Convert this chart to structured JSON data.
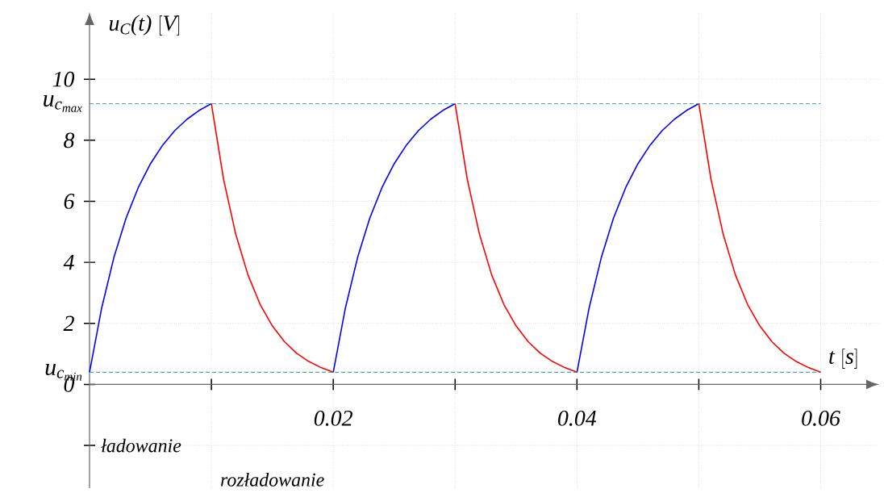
{
  "chart_data": {
    "type": "line",
    "xlabel": "\\textit{t}\\ [\\textit{s}]",
    "ylabel": "\\textit{u}_{\\textit{C}}\\textit{(t)}\\ [\\textit{V}]",
    "xlim": [
      0,
      0.0648
    ],
    "ylim": [
      -3.4,
      12.2
    ],
    "xticks": [
      {
        "value": 0.01,
        "label": null
      },
      {
        "value": 0.02,
        "label": "0.02"
      },
      {
        "value": 0.03,
        "label": null
      },
      {
        "value": 0.04,
        "label": "0.04"
      },
      {
        "value": 0.05,
        "label": null
      },
      {
        "value": 0.06,
        "label": "0.06"
      }
    ],
    "yticks": [
      {
        "value": -2,
        "label": null
      },
      0,
      2,
      4,
      6,
      8,
      10
    ],
    "grid": true,
    "series": [
      {
        "color": "#0000ff",
        "x": [
          0,
          0.001,
          0.002,
          0.003,
          0.004,
          0.005,
          0.006,
          0.007,
          0.008,
          0.009,
          0.01,
          0.015,
          0.02,
          0.021,
          0.022,
          0.023,
          0.024,
          0.025,
          0.026,
          0.027,
          0.028,
          0.029,
          0.03,
          0.035,
          0.04,
          0.041,
          0.042,
          0.043,
          0.044,
          0.045,
          0.046,
          0.047,
          0.048,
          0.049,
          0.05
        ],
        "values": [
          0.4,
          2.51,
          4.16,
          5.45,
          6.45,
          7.23,
          7.84,
          8.32,
          8.69,
          8.98,
          9.2,
          null,
          0.4,
          2.51,
          4.16,
          5.45,
          6.45,
          7.23,
          7.84,
          8.32,
          8.69,
          8.98,
          9.2,
          null,
          0.4,
          2.51,
          4.16,
          5.45,
          6.45,
          7.23,
          7.84,
          8.32,
          8.69,
          8.98,
          9.2
        ]
      },
      {
        "color": "#ff0000",
        "x": [
          0.01,
          0.011,
          0.012,
          0.013,
          0.014,
          0.015,
          0.016,
          0.017,
          0.018,
          0.019,
          0.02,
          0.025,
          0.03,
          0.031,
          0.032,
          0.033,
          0.034,
          0.035,
          0.036,
          0.037,
          0.038,
          0.039,
          0.04,
          0.045,
          0.05,
          0.051,
          0.052,
          0.053,
          0.054,
          0.055,
          0.056,
          0.057,
          0.058,
          0.059,
          0.06
        ],
        "values": [
          9.2,
          6.72,
          4.92,
          3.59,
          2.62,
          1.92,
          1.4,
          1.02,
          0.75,
          0.55,
          0.4,
          null,
          9.2,
          6.72,
          4.92,
          3.59,
          2.62,
          1.92,
          1.4,
          1.02,
          0.75,
          0.55,
          0.4,
          null,
          9.2,
          6.72,
          4.92,
          3.59,
          2.62,
          1.92,
          1.4,
          1.02,
          0.75,
          0.55,
          0.4
        ]
      }
    ],
    "ref_lines": [
      {
        "axis": "y",
        "value": 9.2,
        "label": "\\textit{u}_{\\textit{c}_{\\textit{max}}}",
        "color": "#20a0a0",
        "line_style": "dashed"
      },
      {
        "axis": "y",
        "value": 0.4,
        "label": "\\textit{u}_{\\textit{c}_{\\textit{min}}}",
        "color": "#008b8b",
        "line_style": "dashed"
      }
    ],
    "annotations": [
      "ładowanie",
      "rozładowanie"
    ]
  }
}
